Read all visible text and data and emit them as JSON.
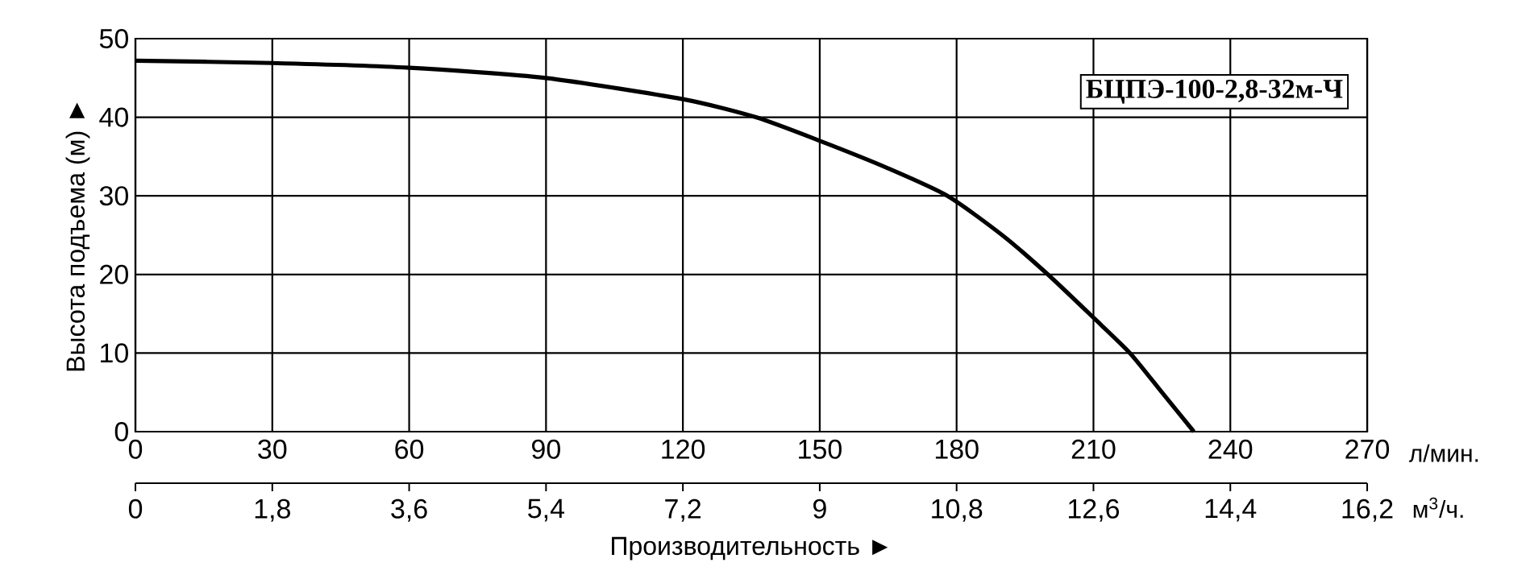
{
  "chart_data": {
    "type": "line",
    "ylabel": "Высота подъема (м) ►",
    "xlabel": "Производительность ►",
    "x": [
      0,
      30,
      60,
      90,
      120,
      136,
      150,
      165,
      178,
      190,
      200,
      210,
      218,
      225,
      232
    ],
    "series": [
      {
        "color": "#000000",
        "values": [
          47.2,
          46.9,
          46.3,
          45.0,
          42.3,
          40,
          37,
          33.5,
          30,
          25,
          20,
          14.5,
          10,
          5,
          0
        ]
      }
    ],
    "xlim": [
      0,
      270
    ],
    "xticks": [
      0,
      30,
      60,
      90,
      120,
      150,
      180,
      210,
      240,
      270
    ],
    "x2lim": [
      0,
      16.2
    ],
    "x2ticks": [
      0,
      {
        "value": 1.8,
        "label": "1,8"
      },
      {
        "value": 3.6,
        "label": "3,6"
      },
      {
        "value": 5.4,
        "label": "5,4"
      },
      {
        "value": 7.2,
        "label": "7,2"
      },
      9,
      {
        "value": 10.8,
        "label": "10,8"
      },
      {
        "value": 12.6,
        "label": "12,6"
      },
      {
        "value": 14.4,
        "label": "14,4"
      },
      {
        "value": 16.2,
        "label": "16,2"
      }
    ],
    "ylim": [
      0,
      50
    ],
    "yticks": [
      0,
      10,
      20,
      30,
      40,
      50
    ],
    "grid": true,
    "annotations": [
      "БЦПЭ-100-2,8-32м-Ч",
      "л/мин.",
      "м$^{3}$/ч."
    ]
  }
}
